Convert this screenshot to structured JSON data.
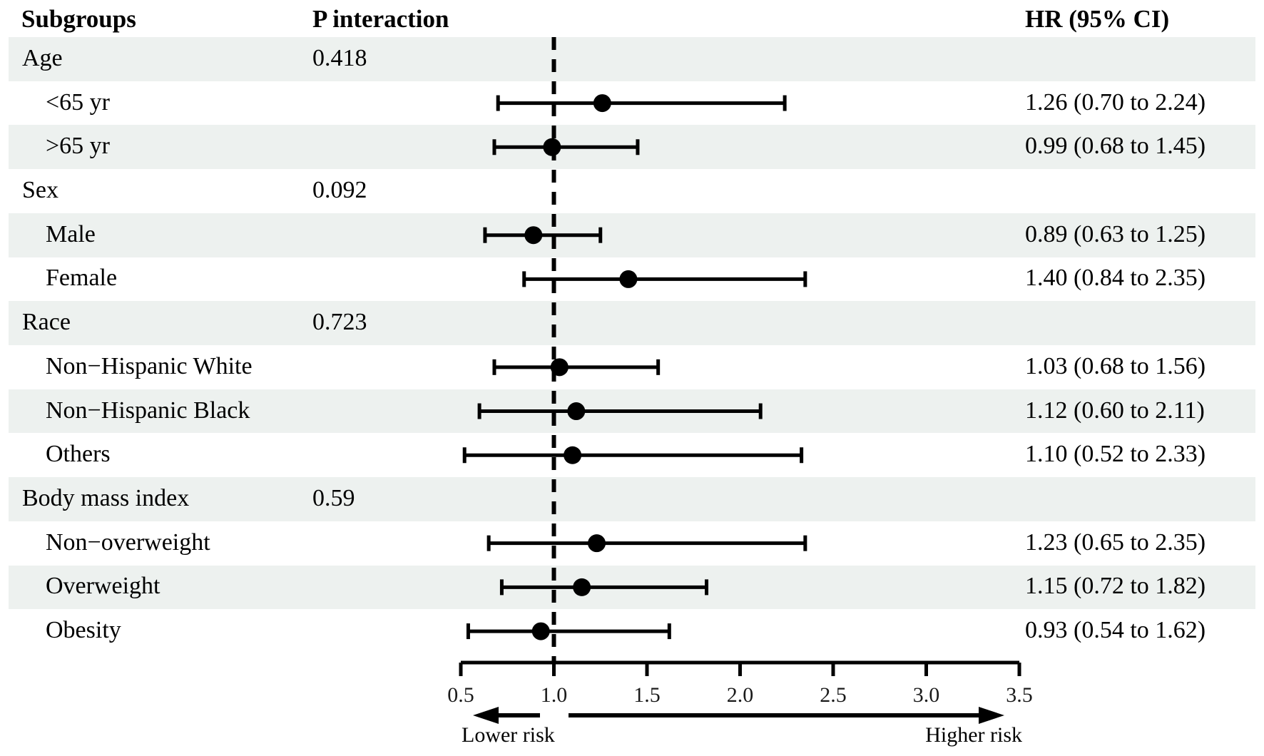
{
  "figure": {
    "header": {
      "subgroups": "Subgroups",
      "p_interaction": "P interaction",
      "hr_ci": "HR (95% CI)"
    },
    "risk_labels": {
      "lower": "Lower risk",
      "higher": "Higher risk"
    }
  },
  "colors": {
    "band": "#edf1ef",
    "ink": "#000000"
  },
  "chart_data": {
    "type": "forest",
    "title": "",
    "columns": [
      "Subgroups",
      "P interaction",
      "HR (95% CI)"
    ],
    "x_axis": {
      "scale": "linear",
      "range": [
        0.5,
        3.5
      ],
      "ticks": [
        0.5,
        1.0,
        1.5,
        2.0,
        2.5,
        3.0,
        3.5
      ],
      "tick_labels": [
        "0.5",
        "1.0",
        "1.5",
        "2.0",
        "2.5",
        "3.0",
        "3.5"
      ],
      "reference_line": 1.0
    },
    "direction_labels": {
      "left": "Lower risk",
      "right": "Higher risk"
    },
    "rows": [
      {
        "label": "Age",
        "level": "group",
        "p": "0.418",
        "shaded": true
      },
      {
        "label": "<65 yr",
        "level": "sub",
        "hr": 1.26,
        "lo": 0.7,
        "hi": 2.24,
        "hr_text": "1.26 (0.70 to 2.24)",
        "shaded": false
      },
      {
        "label": ">65 yr",
        "level": "sub",
        "hr": 0.99,
        "lo": 0.68,
        "hi": 1.45,
        "hr_text": "0.99 (0.68 to 1.45)",
        "shaded": true
      },
      {
        "label": "Sex",
        "level": "group",
        "p": "0.092",
        "shaded": false
      },
      {
        "label": "Male",
        "level": "sub",
        "hr": 0.89,
        "lo": 0.63,
        "hi": 1.25,
        "hr_text": "0.89 (0.63 to 1.25)",
        "shaded": true
      },
      {
        "label": "Female",
        "level": "sub",
        "hr": 1.4,
        "lo": 0.84,
        "hi": 2.35,
        "hr_text": "1.40 (0.84 to 2.35)",
        "shaded": false
      },
      {
        "label": "Race",
        "level": "group",
        "p": "0.723",
        "shaded": true
      },
      {
        "label": "Non−Hispanic White",
        "level": "sub",
        "hr": 1.03,
        "lo": 0.68,
        "hi": 1.56,
        "hr_text": "1.03 (0.68 to 1.56)",
        "shaded": false
      },
      {
        "label": "Non−Hispanic Black",
        "level": "sub",
        "hr": 1.12,
        "lo": 0.6,
        "hi": 2.11,
        "hr_text": "1.12 (0.60 to 2.11)",
        "shaded": true
      },
      {
        "label": "Others",
        "level": "sub",
        "hr": 1.1,
        "lo": 0.52,
        "hi": 2.33,
        "hr_text": "1.10 (0.52 to 2.33)",
        "shaded": false
      },
      {
        "label": "Body mass index",
        "level": "group",
        "p": "0.59",
        "shaded": true
      },
      {
        "label": "Non−overweight",
        "level": "sub",
        "hr": 1.23,
        "lo": 0.65,
        "hi": 2.35,
        "hr_text": "1.23 (0.65 to 2.35)",
        "shaded": false
      },
      {
        "label": "Overweight",
        "level": "sub",
        "hr": 1.15,
        "lo": 0.72,
        "hi": 1.82,
        "hr_text": "1.15 (0.72 to 1.82)",
        "shaded": true
      },
      {
        "label": "Obesity",
        "level": "sub",
        "hr": 0.93,
        "lo": 0.54,
        "hi": 1.62,
        "hr_text": "0.93 (0.54 to 1.62)",
        "shaded": false
      }
    ]
  }
}
